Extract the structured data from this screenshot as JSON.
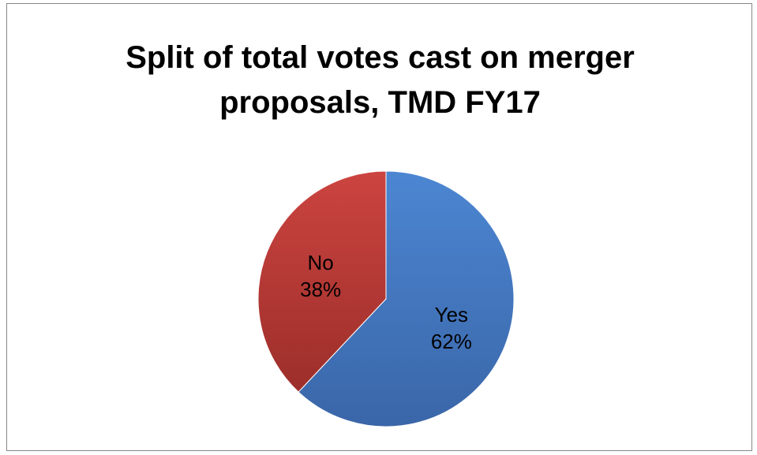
{
  "chart_data": {
    "type": "pie",
    "title": "Split of total votes cast on merger proposals, TMD FY17",
    "title_lines": [
      "Split of total votes cast on merger",
      "proposals, TMD FY17"
    ],
    "slices": [
      {
        "label": "Yes",
        "value": 62,
        "value_label": "62%",
        "color": "#4A7EC6"
      },
      {
        "label": "No",
        "value": 38,
        "value_label": "38%",
        "color": "#C0403C"
      }
    ],
    "legend": "none",
    "start_angle": "12 o'clock",
    "direction": "clockwise"
  }
}
